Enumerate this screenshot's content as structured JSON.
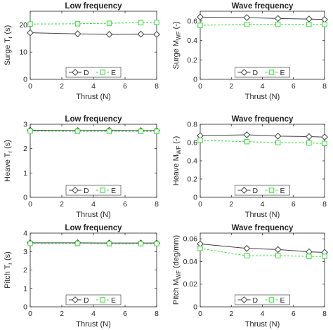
{
  "chart_data": [
    {
      "type": "line",
      "title": "Low frequency",
      "xlabel": "Thrust (N)",
      "ylabel": "Surge T",
      "ylabel_sub": "r",
      "ylabel_unit": "(s)",
      "xlim": [
        0,
        8
      ],
      "ylim": [
        0,
        25
      ],
      "xticks": [
        0,
        2,
        4,
        6,
        8
      ],
      "yticks": [
        0,
        10,
        20
      ],
      "x": [
        0,
        3,
        5,
        7,
        8
      ],
      "series": [
        {
          "name": "D",
          "color": "#404040",
          "marker": "diamond",
          "dash": "solid",
          "values": [
            17.1,
            16.7,
            16.5,
            16.6,
            16.5
          ]
        },
        {
          "name": "E",
          "color": "#33dd33",
          "marker": "square",
          "dash": "dashed",
          "values": [
            20.3,
            20.4,
            20.6,
            20.8,
            20.9
          ]
        }
      ],
      "legend": "bottom-center",
      "grid": false
    },
    {
      "type": "line",
      "title": "Wave frequency",
      "xlabel": "Thrust (N)",
      "ylabel": "Surge M",
      "ylabel_sub": "WF",
      "ylabel_unit": "(-)",
      "xlim": [
        0,
        8
      ],
      "ylim": [
        0,
        0.7
      ],
      "xticks": [
        0,
        2,
        4,
        6,
        8
      ],
      "yticks": [
        0,
        0.2,
        0.4,
        0.6
      ],
      "x": [
        0,
        3,
        5,
        7,
        8
      ],
      "series": [
        {
          "name": "D",
          "color": "#404040",
          "marker": "diamond",
          "dash": "solid",
          "values": [
            0.64,
            0.635,
            0.625,
            0.62,
            0.615
          ]
        },
        {
          "name": "E",
          "color": "#33dd33",
          "marker": "square",
          "dash": "dashed",
          "values": [
            0.555,
            0.565,
            0.565,
            0.565,
            0.565
          ]
        }
      ],
      "legend": "bottom-center",
      "grid": false
    },
    {
      "type": "line",
      "title": "Low frequency",
      "xlabel": "Thrust (N)",
      "ylabel": "Heave T",
      "ylabel_sub": "r",
      "ylabel_unit": "(s)",
      "xlim": [
        0,
        8
      ],
      "ylim": [
        0,
        3
      ],
      "xticks": [
        0,
        2,
        4,
        6,
        8
      ],
      "yticks": [
        0,
        1,
        2,
        3
      ],
      "x": [
        0,
        3,
        5,
        7,
        8
      ],
      "series": [
        {
          "name": "D",
          "color": "#404040",
          "marker": "diamond",
          "dash": "solid",
          "values": [
            2.76,
            2.74,
            2.75,
            2.74,
            2.74
          ]
        },
        {
          "name": "E",
          "color": "#33dd33",
          "marker": "square",
          "dash": "dashed",
          "values": [
            2.72,
            2.71,
            2.71,
            2.71,
            2.71
          ]
        }
      ],
      "legend": "bottom-center",
      "grid": false
    },
    {
      "type": "line",
      "title": "Wave frequency",
      "xlabel": "Thrust (N)",
      "ylabel": "Heave M",
      "ylabel_sub": "WF",
      "ylabel_unit": "(-)",
      "xlim": [
        0,
        8
      ],
      "ylim": [
        0,
        0.8
      ],
      "xticks": [
        0,
        2,
        4,
        6,
        8
      ],
      "yticks": [
        0,
        0.2,
        0.4,
        0.6,
        0.8
      ],
      "x": [
        0,
        3,
        5,
        7,
        8
      ],
      "series": [
        {
          "name": "D",
          "color": "#404040",
          "marker": "diamond",
          "dash": "solid",
          "values": [
            0.675,
            0.685,
            0.67,
            0.665,
            0.66
          ]
        },
        {
          "name": "E",
          "color": "#33dd33",
          "marker": "square",
          "dash": "dashed",
          "values": [
            0.625,
            0.61,
            0.6,
            0.595,
            0.59
          ]
        }
      ],
      "legend": "bottom-center",
      "grid": false
    },
    {
      "type": "line",
      "title": "Low frequency",
      "xlabel": "Thrust (N)",
      "ylabel": "Pitch T",
      "ylabel_sub": "r",
      "ylabel_unit": "(s)",
      "xlim": [
        0,
        8
      ],
      "ylim": [
        0,
        4
      ],
      "xticks": [
        0,
        2,
        4,
        6,
        8
      ],
      "yticks": [
        0,
        1,
        2,
        3,
        4
      ],
      "x": [
        0,
        3,
        5,
        7,
        8
      ],
      "series": [
        {
          "name": "D",
          "color": "#404040",
          "marker": "diamond",
          "dash": "solid",
          "values": [
            3.47,
            3.47,
            3.46,
            3.46,
            3.46
          ]
        },
        {
          "name": "E",
          "color": "#33dd33",
          "marker": "square",
          "dash": "dashed",
          "values": [
            3.44,
            3.44,
            3.43,
            3.43,
            3.43
          ]
        }
      ],
      "legend": "bottom-center",
      "grid": false
    },
    {
      "type": "line",
      "title": "Wave frequency",
      "xlabel": "Thrust (N)",
      "ylabel": "Pitch M",
      "ylabel_sub": "WF",
      "ylabel_unit": "(deg/mm)",
      "xlim": [
        0,
        8
      ],
      "ylim": [
        0,
        0.065
      ],
      "xticks": [
        0,
        2,
        4,
        6,
        8
      ],
      "yticks": [
        0,
        0.02,
        0.04,
        0.06
      ],
      "ytick_labels": [
        "0",
        "0.02",
        "0.04",
        "0.06"
      ],
      "x": [
        0,
        3,
        5,
        7,
        8
      ],
      "series": [
        {
          "name": "D",
          "color": "#404040",
          "marker": "diamond",
          "dash": "solid",
          "values": [
            0.0555,
            0.0515,
            0.0505,
            0.0485,
            0.048
          ]
        },
        {
          "name": "E",
          "color": "#33dd33",
          "marker": "square",
          "dash": "dashed",
          "values": [
            0.0515,
            0.045,
            0.045,
            0.0445,
            0.0445
          ]
        }
      ],
      "legend": "bottom-center",
      "grid": false
    }
  ]
}
